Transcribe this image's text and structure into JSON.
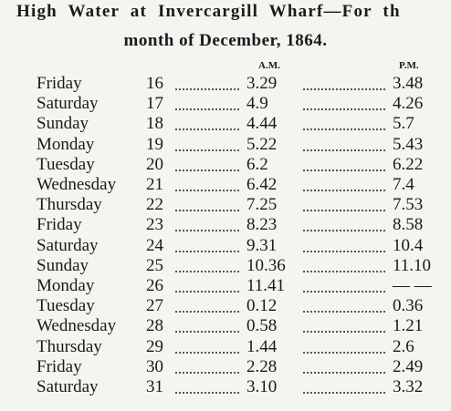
{
  "header": {
    "title": "High Water at Invercargill Wharf—For th",
    "subtitle": "month of December, 1864."
  },
  "table": {
    "columns": [
      "A.M.",
      "P.M."
    ],
    "rows": [
      [
        "Friday",
        "16",
        "3.29",
        "3.48"
      ],
      [
        "Saturday",
        "17",
        "4.9",
        "4.26"
      ],
      [
        "Sunday",
        "18",
        "4.44",
        "5.7"
      ],
      [
        "Monday",
        "19",
        "5.22",
        "5.43"
      ],
      [
        "Tuesday",
        "20",
        "6.2",
        "6.22"
      ],
      [
        "Wednesday",
        "21",
        "6.42",
        "7.4"
      ],
      [
        "Thursday",
        "22",
        "7.25",
        "7.53"
      ],
      [
        "Friday",
        "23",
        "8.23",
        "8.58"
      ],
      [
        "Saturday",
        "24",
        "9.31",
        "10.4"
      ],
      [
        "Sunday",
        "25",
        "10.36",
        "11.10"
      ],
      [
        "Monday",
        "26",
        "11.41",
        "— —"
      ],
      [
        "Tuesday",
        "27",
        "0.12",
        "0.36"
      ],
      [
        "Wednesday",
        "28",
        "0.58",
        "1.21"
      ],
      [
        "Thursday",
        "29",
        "1.44",
        "2.6"
      ],
      [
        "Friday",
        "30",
        "2.28",
        "2.49"
      ],
      [
        "Saturday",
        "31",
        "3.10",
        "3.32"
      ]
    ]
  }
}
